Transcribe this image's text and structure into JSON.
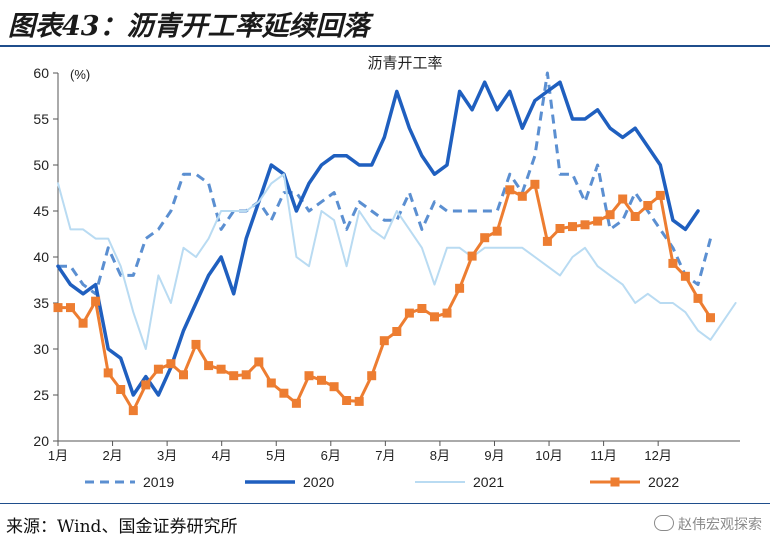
{
  "figure": {
    "title": "图表43：沥青开工率延续回落",
    "source": "来源：Wind、国金证券研究所",
    "watermark": "赵伟宏观探索"
  },
  "chart_data": {
    "type": "line",
    "title": "沥青开工率",
    "ylabel": "(%)",
    "ylim": [
      20,
      60
    ],
    "yticks": [
      20,
      25,
      30,
      35,
      40,
      45,
      50,
      55,
      60
    ],
    "xlim": [
      0,
      12.5
    ],
    "xticks": [
      {
        "pos": 0,
        "label": "1月"
      },
      {
        "pos": 1,
        "label": "2月"
      },
      {
        "pos": 2,
        "label": "3月"
      },
      {
        "pos": 3,
        "label": "4月"
      },
      {
        "pos": 4,
        "label": "5月"
      },
      {
        "pos": 5,
        "label": "6月"
      },
      {
        "pos": 6,
        "label": "7月"
      },
      {
        "pos": 7,
        "label": "8月"
      },
      {
        "pos": 8,
        "label": "9月"
      },
      {
        "pos": 9,
        "label": "10月"
      },
      {
        "pos": 10,
        "label": "11月"
      },
      {
        "pos": 11,
        "label": "12月"
      }
    ],
    "grid": false,
    "legend": "bottom",
    "series": [
      {
        "name": "2019",
        "color": "#5b8fd1",
        "style": "dashed",
        "width": 3,
        "x": [
          0.0,
          0.23,
          0.46,
          0.69,
          0.92,
          1.15,
          1.38,
          1.61,
          1.84,
          2.07,
          2.3,
          2.53,
          2.76,
          2.99,
          3.22,
          3.45,
          3.68,
          3.91,
          4.14,
          4.37,
          4.6,
          4.83,
          5.06,
          5.29,
          5.52,
          5.75,
          5.98,
          6.21,
          6.44,
          6.67,
          6.9,
          7.13,
          7.36,
          7.59,
          7.82,
          8.05,
          8.28,
          8.51,
          8.74,
          8.97,
          9.2,
          9.43,
          9.66,
          9.89,
          10.12,
          10.35,
          10.58,
          10.81,
          11.04,
          11.27,
          11.5,
          11.73,
          11.96,
          12.19,
          12.42
        ],
        "y": [
          39,
          39,
          37,
          36,
          41,
          38,
          38,
          42,
          43,
          45,
          49,
          49,
          48,
          43,
          45,
          45,
          46,
          44,
          47,
          47,
          45,
          46,
          47,
          43,
          46,
          45,
          44,
          44,
          47,
          43,
          46,
          45,
          45,
          45,
          45,
          45,
          49,
          47,
          51,
          60,
          49,
          49,
          46,
          50,
          43,
          44,
          47,
          45,
          43,
          41,
          38,
          37,
          42,
          null,
          null
        ]
      },
      {
        "name": "2020",
        "color": "#1f5fbf",
        "style": "solid",
        "width": 3.5,
        "x": [
          0.0,
          0.23,
          0.46,
          0.69,
          0.92,
          1.15,
          1.38,
          1.61,
          1.84,
          2.07,
          2.3,
          2.53,
          2.76,
          2.99,
          3.22,
          3.45,
          3.68,
          3.91,
          4.14,
          4.37,
          4.6,
          4.83,
          5.06,
          5.29,
          5.52,
          5.75,
          5.98,
          6.21,
          6.44,
          6.67,
          6.9,
          7.13,
          7.36,
          7.59,
          7.82,
          8.05,
          8.28,
          8.51,
          8.74,
          8.97,
          9.2,
          9.43,
          9.66,
          9.89,
          10.12,
          10.35,
          10.58,
          10.81,
          11.04,
          11.27,
          11.5,
          11.73,
          11.96,
          12.19,
          12.42
        ],
        "y": [
          39,
          37,
          36,
          37,
          30,
          29,
          25,
          27,
          25,
          28,
          32,
          35,
          38,
          40,
          36,
          42,
          46,
          50,
          49,
          45,
          48,
          50,
          51,
          51,
          50,
          50,
          53,
          58,
          54,
          51,
          49,
          50,
          58,
          56,
          59,
          56,
          58,
          54,
          57,
          58,
          59,
          55,
          55,
          56,
          54,
          53,
          54,
          52,
          50,
          44,
          43,
          45,
          null,
          null,
          null
        ]
      },
      {
        "name": "2021",
        "color": "#b9dbf2",
        "style": "solid",
        "width": 2,
        "x": [
          0.0,
          0.23,
          0.46,
          0.69,
          0.92,
          1.15,
          1.38,
          1.61,
          1.84,
          2.07,
          2.3,
          2.53,
          2.76,
          2.99,
          3.22,
          3.45,
          3.68,
          3.91,
          4.14,
          4.37,
          4.6,
          4.83,
          5.06,
          5.29,
          5.52,
          5.75,
          5.98,
          6.21,
          6.44,
          6.67,
          6.9,
          7.13,
          7.36,
          7.59,
          7.82,
          8.05,
          8.28,
          8.51,
          8.74,
          8.97,
          9.2,
          9.43,
          9.66,
          9.89,
          10.12,
          10.35,
          10.58,
          10.81,
          11.04,
          11.27,
          11.5,
          11.73,
          11.96,
          12.19,
          12.42
        ],
        "y": [
          48,
          43,
          43,
          42,
          42,
          39,
          34,
          30,
          38,
          35,
          41,
          40,
          42,
          45,
          45,
          45,
          46,
          48,
          49,
          40,
          39,
          45,
          44,
          39,
          45,
          43,
          42,
          45,
          43,
          41,
          37,
          41,
          41,
          40,
          41,
          41,
          41,
          41,
          40,
          39,
          38,
          40,
          41,
          39,
          38,
          37,
          35,
          36,
          35,
          35,
          34,
          32,
          31,
          33,
          35
        ]
      },
      {
        "name": "2022",
        "color": "#ed7d31",
        "style": "solid",
        "width": 3,
        "marker": "square",
        "x": [
          0.0,
          0.23,
          0.46,
          0.69,
          0.92,
          1.15,
          1.38,
          1.61,
          1.84,
          2.07,
          2.3,
          2.53,
          2.76,
          2.99,
          3.22,
          3.45,
          3.68,
          3.91,
          4.14,
          4.37,
          4.6,
          4.83,
          5.06,
          5.29,
          5.52,
          5.75,
          5.98,
          6.21,
          6.44,
          6.67,
          6.9,
          7.13,
          7.36,
          7.59,
          7.82,
          8.05,
          8.28,
          8.51,
          8.74,
          8.97,
          9.2,
          9.43,
          9.66,
          9.89,
          10.12,
          10.35,
          10.58,
          10.81,
          11.04,
          11.27,
          11.5,
          11.73,
          11.96,
          12.19,
          12.42
        ],
        "y": [
          34.5,
          34.5,
          32.8,
          35.2,
          27.4,
          25.6,
          23.3,
          26.1,
          27.8,
          28.4,
          27.2,
          30.5,
          28.2,
          27.8,
          27.1,
          27.2,
          28.6,
          26.3,
          25.2,
          24.1,
          27.1,
          26.6,
          25.9,
          24.4,
          24.3,
          27.1,
          30.9,
          31.9,
          33.9,
          34.4,
          33.5,
          33.9,
          36.6,
          40.1,
          42.1,
          42.8,
          47.3,
          46.6,
          47.9,
          41.7,
          43.1,
          43.3,
          43.5,
          43.9,
          44.6,
          46.3,
          44.4,
          45.6,
          46.7,
          39.3,
          37.9,
          35.5,
          33.4,
          null,
          null
        ]
      }
    ]
  }
}
